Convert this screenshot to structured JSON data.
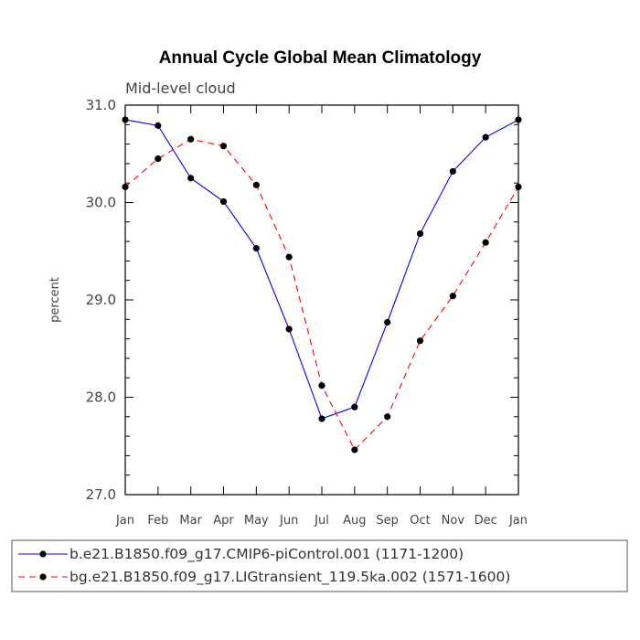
{
  "chart_data": {
    "type": "line",
    "title": "Annual Cycle Global Mean Climatology",
    "subtitle": "Mid-level cloud",
    "xlabel": "",
    "ylabel": "percent",
    "categories": [
      "Jan",
      "Feb",
      "Mar",
      "Apr",
      "May",
      "Jun",
      "Jul",
      "Aug",
      "Sep",
      "Oct",
      "Nov",
      "Dec",
      "Jan"
    ],
    "ylim": [
      27.0,
      31.0
    ],
    "yticks": [
      "27.0",
      "28.0",
      "29.0",
      "30.0",
      "31.0"
    ],
    "series": [
      {
        "name": "b.e21.B1850.f09_g17.CMIP6-piControl.001 (1171-1200)",
        "color": "#0000ff",
        "dash": "solid",
        "values": [
          30.85,
          30.79,
          30.25,
          30.01,
          29.53,
          28.7,
          27.78,
          27.9,
          28.77,
          29.68,
          30.32,
          30.67,
          30.85
        ]
      },
      {
        "name": "bg.e21.B1850.f09_g17.LIGtransient_119.5ka.002 (1571-1600)",
        "color": "#ff0000",
        "dash": "dashed",
        "values": [
          30.16,
          30.45,
          30.65,
          30.58,
          30.18,
          29.44,
          28.12,
          27.46,
          27.8,
          28.58,
          29.04,
          29.59,
          30.16
        ]
      }
    ],
    "legend_position": "bottom"
  }
}
